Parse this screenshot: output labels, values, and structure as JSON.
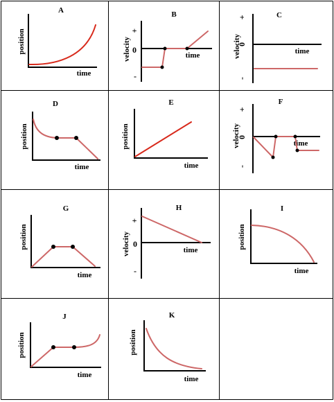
{
  "colors": {
    "curve_red": "#d82a1c",
    "curve_rose": "#cd6767",
    "ink": "#000000"
  },
  "panels": {
    "A": {
      "title": "A",
      "ylabel": "position",
      "xlabel": "time"
    },
    "B": {
      "title": "B",
      "ylabel": "velocity",
      "xlabel": "time",
      "plus": "+",
      "zero": "0",
      "minus": "-"
    },
    "C": {
      "title": "C",
      "ylabel": "velocity",
      "xlabel": "time",
      "plus": "+",
      "zero": "0",
      "minus": "-"
    },
    "D": {
      "title": "D",
      "ylabel": "position",
      "xlabel": "time"
    },
    "E": {
      "title": "E",
      "ylabel": "position",
      "xlabel": "time"
    },
    "F": {
      "title": "F",
      "ylabel": "velocity",
      "xlabel": "time",
      "plus": "+",
      "zero": "0",
      "minus": "-"
    },
    "G": {
      "title": "G",
      "ylabel": "position",
      "xlabel": "time"
    },
    "H": {
      "title": "H",
      "ylabel": "velocity",
      "xlabel": "time",
      "plus": "+",
      "zero": "0",
      "minus": "-"
    },
    "I": {
      "title": "I",
      "ylabel": "position",
      "xlabel": "time"
    },
    "J": {
      "title": "J",
      "ylabel": "position",
      "xlabel": "time"
    },
    "K": {
      "title": "K",
      "ylabel": "position",
      "xlabel": "time"
    }
  }
}
